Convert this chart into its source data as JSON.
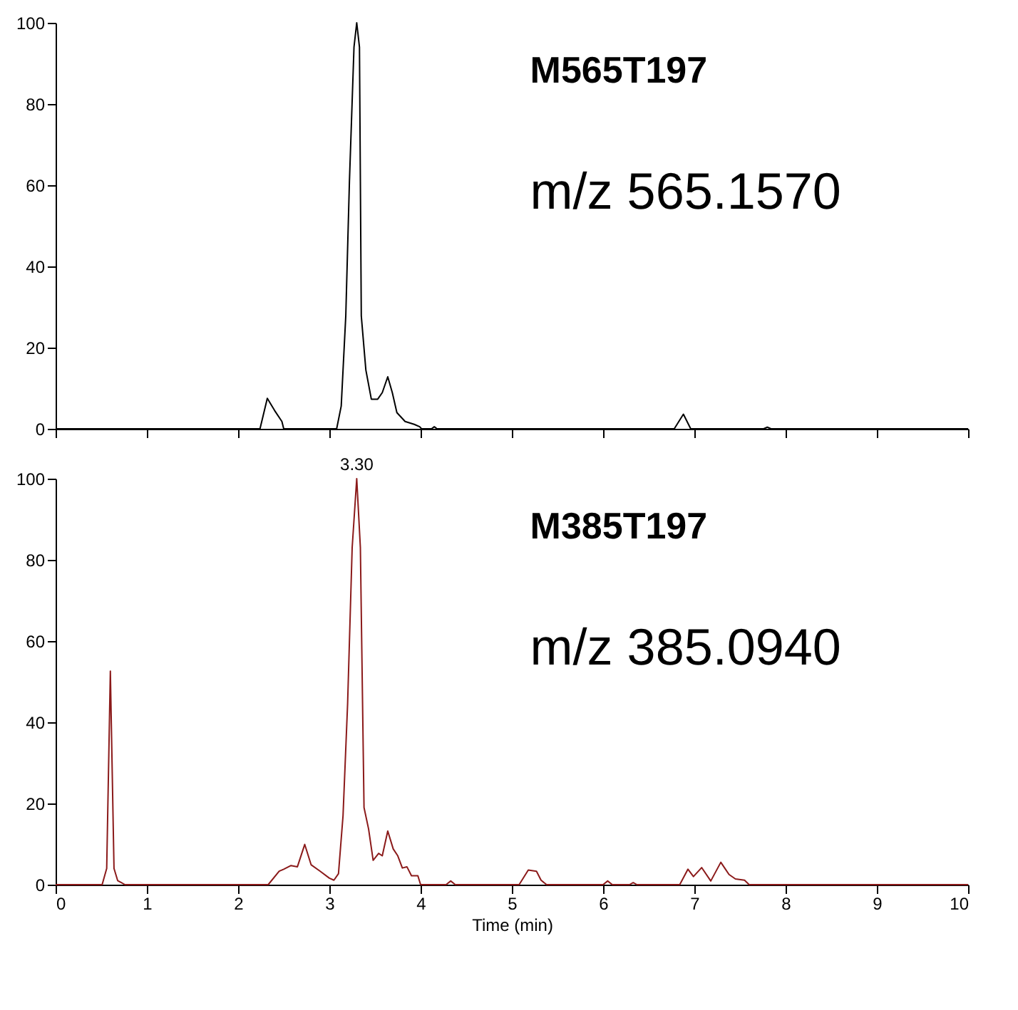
{
  "chart_data": [
    {
      "type": "line",
      "annotations": [
        "M565T197",
        "m/z 565.1570"
      ],
      "xlim": [
        0,
        10
      ],
      "xticks": [
        0,
        1,
        2,
        3,
        4,
        5,
        6,
        7,
        8,
        9,
        10
      ],
      "ylim": [
        0,
        100
      ],
      "yticks": [
        0,
        20,
        40,
        60,
        80,
        100
      ],
      "tick_labels": "y",
      "grid": false,
      "line_style": "solid",
      "x": [
        0,
        2.24,
        2.32,
        2.4,
        2.48,
        2.5,
        3.08,
        3.13,
        3.18,
        3.22,
        3.27,
        3.3,
        3.33,
        3.35,
        3.4,
        3.46,
        3.53,
        3.58,
        3.64,
        3.69,
        3.74,
        3.83,
        3.93,
        3.99,
        4.01,
        4.12,
        4.15,
        4.18,
        6.78,
        6.88,
        6.96,
        7.76,
        7.8,
        7.84,
        10
      ],
      "series": [
        {
          "color": "#000000",
          "values": [
            0,
            0,
            7.5,
            4.5,
            1.8,
            0,
            0,
            5.6,
            27.8,
            60.9,
            94,
            100,
            94,
            27.8,
            14.5,
            7.3,
            7.3,
            8.9,
            12.8,
            8.9,
            4,
            1.8,
            1.1,
            0.5,
            0,
            0,
            0.5,
            0,
            0,
            3.6,
            0,
            0,
            0.4,
            0,
            0
          ]
        }
      ]
    },
    {
      "type": "line",
      "annotations": [
        "M385T197",
        "m/z 385.0940",
        {
          "text": "3.30",
          "x": 3.3,
          "y": 100
        }
      ],
      "xlabel": "Time (min)",
      "xlim": [
        0,
        10
      ],
      "xticks": [
        0,
        1,
        2,
        3,
        4,
        5,
        6,
        7,
        8,
        9,
        10
      ],
      "ylim": [
        0,
        100
      ],
      "yticks": [
        0,
        20,
        40,
        60,
        80,
        100
      ],
      "grid": false,
      "line_style": "solid",
      "x": [
        0,
        0.51,
        0.56,
        0.6,
        0.64,
        0.68,
        0.72,
        0.76,
        2.33,
        2.45,
        2.5,
        2.58,
        2.65,
        2.73,
        2.8,
        2.9,
        3.0,
        3.05,
        3.1,
        3.15,
        3.2,
        3.25,
        3.3,
        3.34,
        3.38,
        3.43,
        3.48,
        3.54,
        3.58,
        3.64,
        3.7,
        3.75,
        3.8,
        3.85,
        3.9,
        3.97,
        4.0,
        4.28,
        4.33,
        4.38,
        5.08,
        5.18,
        5.27,
        5.32,
        5.38,
        6.0,
        6.05,
        6.1,
        6.29,
        6.33,
        6.37,
        6.84,
        6.93,
        6.99,
        7.08,
        7.18,
        7.29,
        7.38,
        7.45,
        7.55,
        7.6,
        10
      ],
      "series": [
        {
          "color": "#8b1a1a",
          "values": [
            0,
            0,
            4,
            52.6,
            4,
            1,
            0.5,
            0,
            0,
            3.3,
            3.8,
            4.7,
            4.4,
            9.9,
            4.9,
            3.3,
            1.6,
            1.1,
            2.7,
            17,
            44.5,
            83,
            100,
            83,
            19,
            13.7,
            6,
            7.7,
            7.1,
            13.2,
            8.8,
            7.1,
            4.1,
            4.4,
            2.2,
            2.2,
            0,
            0,
            0.9,
            0,
            0,
            3.6,
            3.3,
            1.1,
            0,
            0,
            0.9,
            0,
            0,
            0.5,
            0,
            0,
            3.8,
            2,
            4.2,
            0.9,
            5.5,
            2.5,
            1.4,
            1.1,
            0,
            0
          ]
        }
      ]
    }
  ]
}
